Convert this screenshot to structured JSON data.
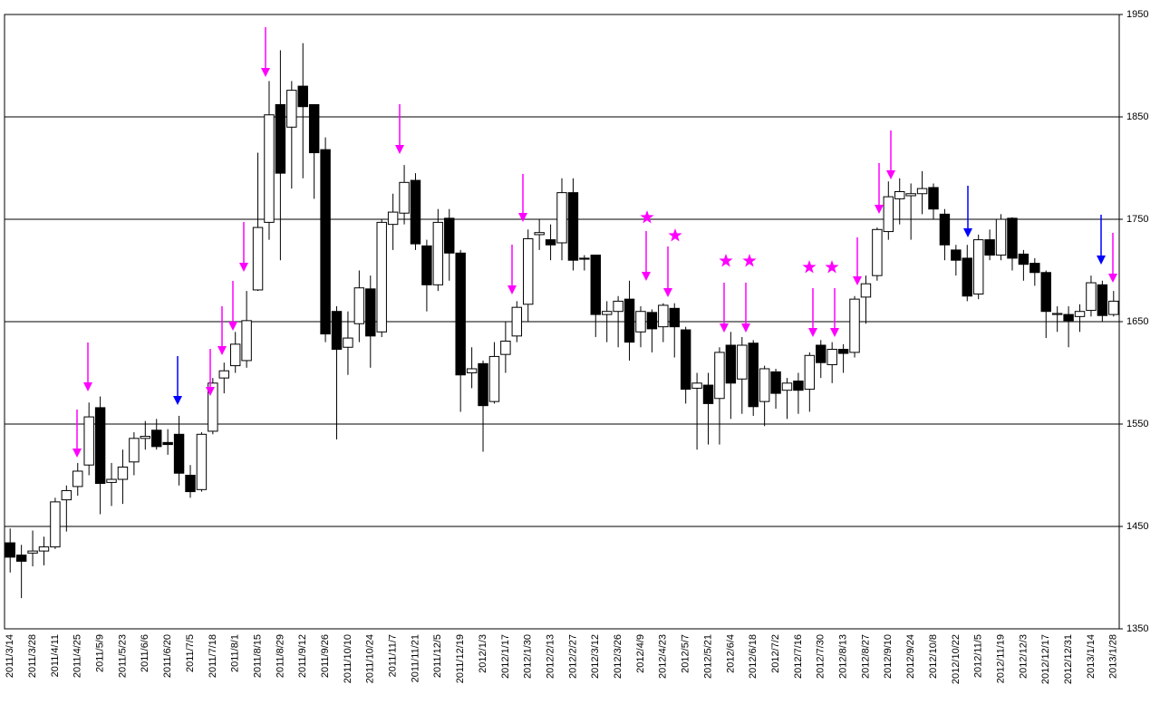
{
  "chart_data": {
    "type": "candlestick",
    "categories": [
      "2011/3/14",
      null,
      "2011/3/28",
      null,
      "2011/4/11",
      null,
      "2011/4/25",
      null,
      "2011/5/9",
      null,
      "2011/5/23",
      null,
      "2011/6/6",
      null,
      "2011/6/20",
      null,
      "2011/7/5",
      null,
      "2011/7/18",
      null,
      "2011/8/1",
      null,
      "2011/8/15",
      null,
      "2011/8/29",
      null,
      "2011/9/12",
      null,
      "2011/9/26",
      null,
      "2011/10/10",
      null,
      "2011/10/24",
      null,
      "2011/11/7",
      null,
      "2011/11/21",
      null,
      "2011/12/5",
      null,
      "2011/12/19",
      null,
      "2012/1/3",
      null,
      "2012/1/17",
      null,
      "2012/1/30",
      null,
      "2012/2/13",
      null,
      "2012/2/27",
      null,
      "2012/3/12",
      null,
      "2012/3/26",
      null,
      "2012/4/9",
      null,
      "2012/4/23",
      null,
      "2012/5/7",
      null,
      "2012/5/21",
      null,
      "2012/6/4",
      null,
      "2012/6/18",
      null,
      "2012/7/2",
      null,
      "2012/7/16",
      null,
      "2012/7/30",
      null,
      "2012/8/13",
      null,
      "2012/8/27",
      null,
      "2012/9/10",
      null,
      "2012/9/24",
      null,
      "2012/10/8",
      null,
      "2012/10/22",
      null,
      "2012/11/5",
      null,
      "2012/11/19",
      null,
      "2012/12/3",
      null,
      "2012/12/17",
      null,
      "2012/12/31",
      null,
      "2013/1/14",
      null,
      "2013/1/28"
    ],
    "open": [
      1434,
      1422,
      1424,
      1426,
      1430,
      1476,
      1489,
      1510,
      1566,
      1493,
      1496,
      1513,
      1536,
      1544,
      1532,
      1540,
      1500,
      1486,
      1543,
      1595,
      1607,
      1612,
      1681,
      1747,
      1862,
      1840,
      1880,
      1862,
      1818,
      1660,
      1625,
      1648,
      1682,
      1640,
      1745,
      1756,
      1788,
      1724,
      1686,
      1751,
      1717,
      1600,
      1609,
      1572,
      1618,
      1636,
      1667,
      1735,
      1730,
      1727,
      1776,
      1712,
      1715,
      1657,
      1660,
      1672,
      1640,
      1659,
      1645,
      1663,
      1642,
      1585,
      1588,
      1575,
      1627,
      1594,
      1629,
      1572,
      1601,
      1583,
      1592,
      1584,
      1627,
      1608,
      1623,
      1620,
      1674,
      1695,
      1738,
      1770,
      1773,
      1775,
      1781,
      1755,
      1720,
      1712,
      1677,
      1730,
      1715,
      1751,
      1716,
      1707,
      1698,
      1657,
      1657,
      1655,
      1661,
      1686,
      1657
    ],
    "high": [
      1448,
      1432,
      1446,
      1440,
      1478,
      1490,
      1512,
      1571,
      1577,
      1512,
      1525,
      1542,
      1553,
      1555,
      1545,
      1558,
      1510,
      1542,
      1595,
      1610,
      1640,
      1680,
      1815,
      1885,
      1915,
      1885,
      1922,
      1860,
      1830,
      1665,
      1660,
      1700,
      1695,
      1750,
      1775,
      1803,
      1795,
      1730,
      1760,
      1760,
      1720,
      1625,
      1612,
      1630,
      1650,
      1670,
      1740,
      1750,
      1745,
      1790,
      1790,
      1715,
      1715,
      1670,
      1675,
      1690,
      1665,
      1662,
      1668,
      1668,
      1645,
      1600,
      1600,
      1625,
      1640,
      1635,
      1632,
      1607,
      1604,
      1595,
      1600,
      1620,
      1632,
      1630,
      1628,
      1675,
      1695,
      1742,
      1787,
      1790,
      1785,
      1797,
      1785,
      1760,
      1725,
      1725,
      1735,
      1740,
      1755,
      1752,
      1720,
      1712,
      1700,
      1665,
      1665,
      1667,
      1695,
      1690,
      1680
    ],
    "low": [
      1405,
      1380,
      1411,
      1412,
      1428,
      1445,
      1480,
      1500,
      1462,
      1470,
      1472,
      1500,
      1525,
      1525,
      1520,
      1490,
      1478,
      1484,
      1540,
      1580,
      1600,
      1605,
      1680,
      1730,
      1710,
      1780,
      1790,
      1770,
      1630,
      1535,
      1598,
      1630,
      1605,
      1635,
      1720,
      1745,
      1720,
      1660,
      1680,
      1690,
      1562,
      1585,
      1523,
      1570,
      1600,
      1630,
      1650,
      1720,
      1710,
      1710,
      1700,
      1700,
      1635,
      1630,
      1625,
      1612,
      1625,
      1620,
      1630,
      1615,
      1570,
      1525,
      1530,
      1530,
      1555,
      1560,
      1558,
      1548,
      1565,
      1555,
      1560,
      1562,
      1595,
      1590,
      1600,
      1615,
      1648,
      1690,
      1730,
      1745,
      1730,
      1755,
      1750,
      1710,
      1695,
      1670,
      1672,
      1710,
      1710,
      1700,
      1690,
      1685,
      1634,
      1640,
      1625,
      1640,
      1655,
      1650,
      1655
    ],
    "close": [
      1420,
      1416,
      1426,
      1430,
      1474,
      1485,
      1504,
      1557,
      1492,
      1496,
      1508,
      1536,
      1538,
      1528,
      1530,
      1502,
      1484,
      1540,
      1590,
      1602,
      1628,
      1651,
      1742,
      1852,
      1795,
      1876,
      1860,
      1815,
      1638,
      1623,
      1634,
      1683,
      1636,
      1747,
      1757,
      1786,
      1726,
      1686,
      1747,
      1717,
      1598,
      1604,
      1568,
      1616,
      1631,
      1664,
      1731,
      1737,
      1725,
      1776,
      1710,
      1711,
      1657,
      1660,
      1670,
      1630,
      1660,
      1643,
      1666,
      1645,
      1584,
      1590,
      1570,
      1620,
      1590,
      1627,
      1567,
      1604,
      1580,
      1590,
      1583,
      1617,
      1610,
      1623,
      1619,
      1672,
      1687,
      1740,
      1772,
      1777,
      1775,
      1780,
      1760,
      1725,
      1710,
      1675,
      1730,
      1715,
      1750,
      1712,
      1706,
      1698,
      1660,
      1658,
      1651,
      1660,
      1688,
      1656,
      1670
    ],
    "ylim": [
      1350,
      1950
    ],
    "yticks": [
      1350,
      1450,
      1550,
      1650,
      1750,
      1850,
      1950
    ],
    "grid": true
  }
}
